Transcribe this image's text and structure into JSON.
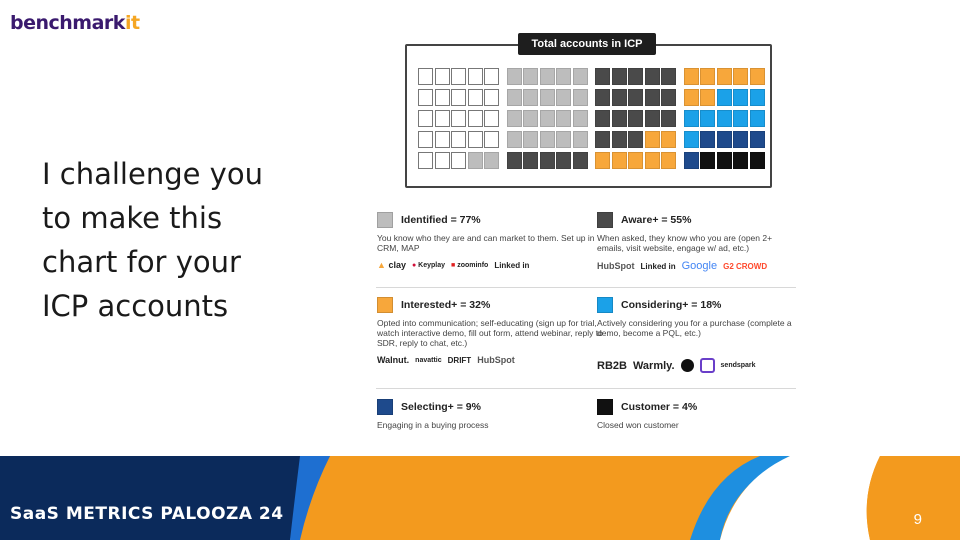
{
  "logo": {
    "main": "benchmark",
    "accent": "it"
  },
  "headline": [
    "I challenge you",
    "to make this",
    "chart for your",
    "ICP accounts"
  ],
  "chart": {
    "title": "Total accounts in ICP",
    "colors": {
      "identified": "#bdbdbd",
      "aware": "#4a4a4a",
      "interested": "#f7a73b",
      "considering": "#1ba1e8",
      "selecting": "#1e4a8c",
      "customer": "#111111",
      "unidentified": "#ffffff"
    },
    "rows": [
      [
        "unidentified",
        "unidentified",
        "unidentified",
        "unidentified",
        "unidentified",
        "identified",
        "identified",
        "identified",
        "identified",
        "identified",
        "aware",
        "aware",
        "aware",
        "aware",
        "aware",
        "interested",
        "interested",
        "interested",
        "interested",
        "interested"
      ],
      [
        "unidentified",
        "unidentified",
        "unidentified",
        "unidentified",
        "unidentified",
        "identified",
        "identified",
        "identified",
        "identified",
        "identified",
        "aware",
        "aware",
        "aware",
        "aware",
        "aware",
        "interested",
        "interested",
        "considering",
        "considering",
        "considering"
      ],
      [
        "unidentified",
        "unidentified",
        "unidentified",
        "unidentified",
        "unidentified",
        "identified",
        "identified",
        "identified",
        "identified",
        "identified",
        "aware",
        "aware",
        "aware",
        "aware",
        "aware",
        "considering",
        "considering",
        "considering",
        "considering",
        "considering"
      ],
      [
        "unidentified",
        "unidentified",
        "unidentified",
        "unidentified",
        "unidentified",
        "identified",
        "identified",
        "identified",
        "identified",
        "identified",
        "aware",
        "aware",
        "aware",
        "interested",
        "interested",
        "considering",
        "selecting",
        "selecting",
        "selecting",
        "selecting"
      ],
      [
        "unidentified",
        "unidentified",
        "unidentified",
        "identified",
        "identified",
        "aware",
        "aware",
        "aware",
        "aware",
        "aware",
        "interested",
        "interested",
        "interested",
        "interested",
        "interested",
        "selecting",
        "customer",
        "customer",
        "customer",
        "customer"
      ]
    ]
  },
  "legend": {
    "identified": {
      "label": "Identified = 77%",
      "desc": "You know who they are and can market to them. Set up in CRM, MAP",
      "logos": [
        "clay",
        "Keyplay",
        "zoominfo",
        "Linked in"
      ]
    },
    "aware": {
      "label": "Aware+ = 55%",
      "desc": "When asked, they know who you are (open 2+ emails, visit website, engage w/ ad, etc.)",
      "logos": [
        "HubSpot",
        "Linked in",
        "Google",
        "G2 CROWD"
      ]
    },
    "interested": {
      "label": "Interested+ = 32%",
      "desc": "Opted into communication; self-educating (sign up for trial, watch interactive demo, fill out form, attend webinar, reply to SDR, reply to chat, etc.)",
      "logos": [
        "Walnut.",
        "navattic",
        "DRIFT",
        "HubSpot"
      ]
    },
    "considering": {
      "label": "Considering+ = 18%",
      "desc": "Actively considering you for a purchase (complete a demo, become a PQL, etc.)",
      "logos": [
        "RB2B",
        "Warmly.",
        "sendspark"
      ]
    },
    "selecting": {
      "label": "Selecting+ = 9%",
      "desc": "Engaging in a buying process"
    },
    "customer": {
      "label": "Customer = 4%",
      "desc": "Closed won customer"
    }
  },
  "footer": {
    "text": "SaaS METRICS PALOOZA 24",
    "page": "9"
  }
}
